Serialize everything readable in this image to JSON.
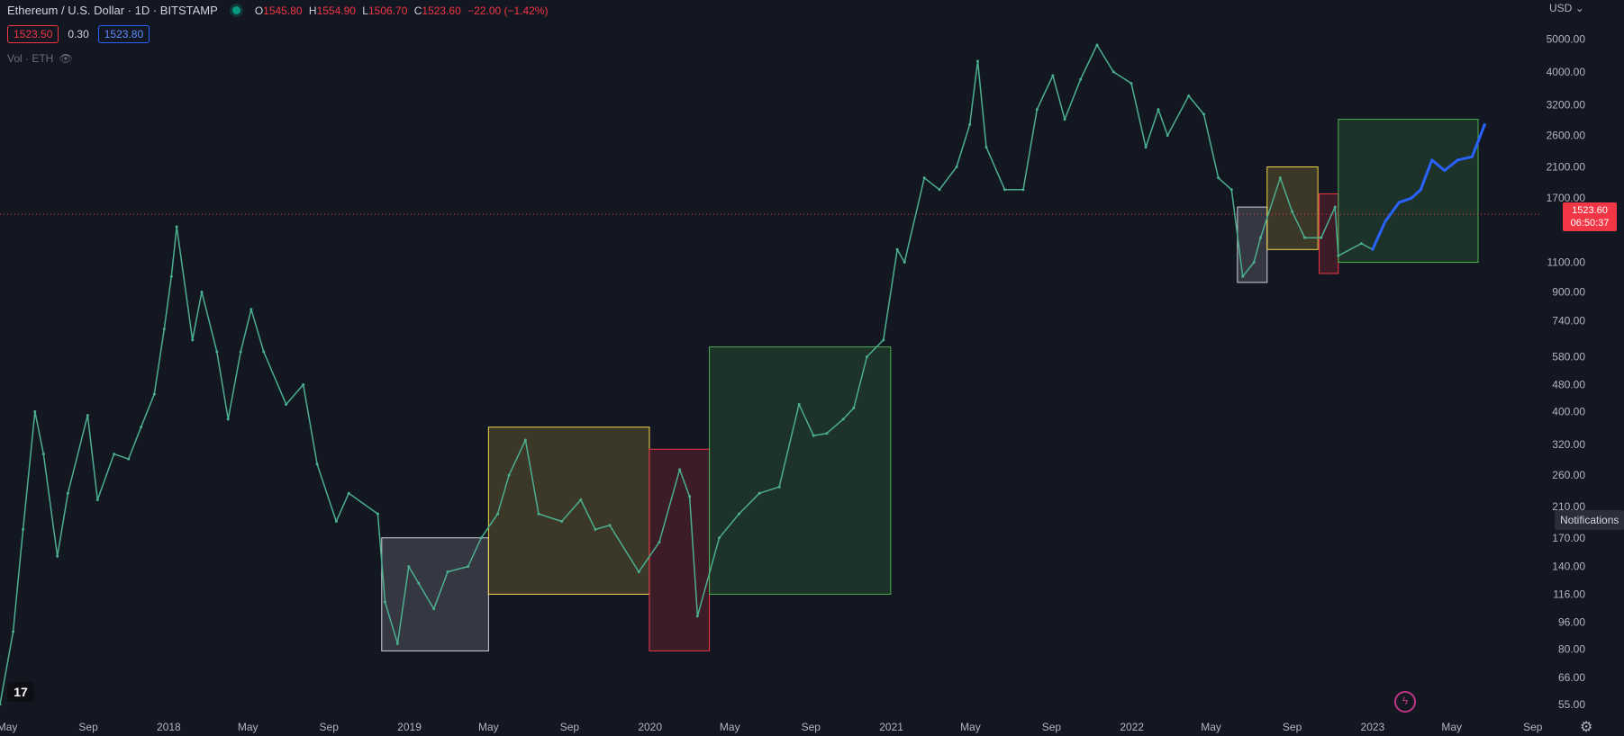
{
  "header": {
    "symbol": "Ethereum / U.S. Dollar · 1D · BITSTAMP",
    "ohlc": [
      {
        "label": "O",
        "value": "1545.80"
      },
      {
        "label": "H",
        "value": "1554.90"
      },
      {
        "label": "L",
        "value": "1506.70"
      },
      {
        "label": "C",
        "value": "1523.60"
      }
    ],
    "change": "−22.00 (−1.42%)",
    "bid": "1523.50",
    "spread": "0.30",
    "ask": "1523.80",
    "volume_label": "Vol · ETH"
  },
  "price_axis": {
    "currency": "USD",
    "current_price": "1523.60",
    "countdown": "06:50:37"
  },
  "notifications_label": "Notifications",
  "colors": {
    "background": "#131722",
    "up": "#089981",
    "down": "#f23645",
    "forecast": "#2962ff"
  },
  "chart_data": {
    "type": "line",
    "y_scale": "log",
    "ylim": [
      52,
      6200
    ],
    "y_ticks": [
      "5000.00",
      "4000.00",
      "3200.00",
      "2600.00",
      "2100.00",
      "1700.00",
      "1100.00",
      "900.00",
      "740.00",
      "580.00",
      "480.00",
      "400.00",
      "320.00",
      "260.00",
      "210.00",
      "170.00",
      "140.00",
      "116.00",
      "96.00",
      "80.00",
      "66.00",
      "55.00"
    ],
    "x_range": [
      "2017-04-20",
      "2023-09-15"
    ],
    "x_ticks": [
      {
        "label": "May",
        "date": "2017-05-01"
      },
      {
        "label": "Sep",
        "date": "2017-09-01"
      },
      {
        "label": "2018",
        "date": "2018-01-01"
      },
      {
        "label": "May",
        "date": "2018-05-01"
      },
      {
        "label": "Sep",
        "date": "2018-09-01"
      },
      {
        "label": "2019",
        "date": "2019-01-01"
      },
      {
        "label": "May",
        "date": "2019-05-01"
      },
      {
        "label": "Sep",
        "date": "2019-09-01"
      },
      {
        "label": "2020",
        "date": "2020-01-01"
      },
      {
        "label": "May",
        "date": "2020-05-01"
      },
      {
        "label": "Sep",
        "date": "2020-09-01"
      },
      {
        "label": "2021",
        "date": "2021-01-01"
      },
      {
        "label": "May",
        "date": "2021-05-01"
      },
      {
        "label": "Sep",
        "date": "2021-09-01"
      },
      {
        "label": "2022",
        "date": "2022-01-01"
      },
      {
        "label": "May",
        "date": "2022-05-01"
      },
      {
        "label": "Sep",
        "date": "2022-09-01"
      },
      {
        "label": "2023",
        "date": "2023-01-01"
      },
      {
        "label": "May",
        "date": "2023-05-01"
      },
      {
        "label": "Sep",
        "date": "2023-09-01"
      }
    ],
    "current_price_line": 1523.6,
    "series": [
      {
        "color": "#4caf8f",
        "points": [
          [
            "2017-04-20",
            55
          ],
          [
            "2017-05-10",
            90
          ],
          [
            "2017-05-25",
            180
          ],
          [
            "2017-06-12",
            400
          ],
          [
            "2017-06-25",
            300
          ],
          [
            "2017-07-16",
            150
          ],
          [
            "2017-08-01",
            230
          ],
          [
            "2017-08-31",
            390
          ],
          [
            "2017-09-15",
            220
          ],
          [
            "2017-10-10",
            300
          ],
          [
            "2017-11-01",
            290
          ],
          [
            "2017-11-20",
            360
          ],
          [
            "2017-12-10",
            450
          ],
          [
            "2017-12-25",
            700
          ],
          [
            "2018-01-05",
            1000
          ],
          [
            "2018-01-13",
            1400
          ],
          [
            "2018-02-06",
            650
          ],
          [
            "2018-02-20",
            900
          ],
          [
            "2018-03-15",
            600
          ],
          [
            "2018-04-01",
            380
          ],
          [
            "2018-04-20",
            600
          ],
          [
            "2018-05-06",
            800
          ],
          [
            "2018-05-25",
            600
          ],
          [
            "2018-06-28",
            420
          ],
          [
            "2018-07-24",
            480
          ],
          [
            "2018-08-14",
            280
          ],
          [
            "2018-09-12",
            190
          ],
          [
            "2018-10-01",
            230
          ],
          [
            "2018-11-14",
            200
          ],
          [
            "2018-11-25",
            110
          ],
          [
            "2018-12-14",
            83
          ],
          [
            "2018-12-31",
            140
          ],
          [
            "2019-01-15",
            125
          ],
          [
            "2019-02-07",
            105
          ],
          [
            "2019-02-28",
            135
          ],
          [
            "2019-03-31",
            140
          ],
          [
            "2019-04-20",
            170
          ],
          [
            "2019-05-15",
            200
          ],
          [
            "2019-06-01",
            260
          ],
          [
            "2019-06-26",
            330
          ],
          [
            "2019-07-16",
            200
          ],
          [
            "2019-08-20",
            190
          ],
          [
            "2019-09-18",
            220
          ],
          [
            "2019-10-10",
            180
          ],
          [
            "2019-11-01",
            185
          ],
          [
            "2019-12-15",
            135
          ],
          [
            "2020-01-15",
            165
          ],
          [
            "2020-02-15",
            270
          ],
          [
            "2020-03-01",
            225
          ],
          [
            "2020-03-13",
            100
          ],
          [
            "2020-04-15",
            170
          ],
          [
            "2020-05-15",
            200
          ],
          [
            "2020-06-15",
            230
          ],
          [
            "2020-07-15",
            240
          ],
          [
            "2020-08-14",
            420
          ],
          [
            "2020-09-05",
            340
          ],
          [
            "2020-09-25",
            345
          ],
          [
            "2020-10-20",
            380
          ],
          [
            "2020-11-05",
            410
          ],
          [
            "2020-11-25",
            580
          ],
          [
            "2020-12-20",
            650
          ],
          [
            "2021-01-10",
            1200
          ],
          [
            "2021-01-21",
            1100
          ],
          [
            "2021-02-20",
            1950
          ],
          [
            "2021-03-15",
            1800
          ],
          [
            "2021-04-10",
            2100
          ],
          [
            "2021-04-30",
            2800
          ],
          [
            "2021-05-12",
            4300
          ],
          [
            "2021-05-25",
            2400
          ],
          [
            "2021-06-22",
            1800
          ],
          [
            "2021-07-20",
            1800
          ],
          [
            "2021-08-10",
            3100
          ],
          [
            "2021-09-03",
            3900
          ],
          [
            "2021-09-21",
            2900
          ],
          [
            "2021-10-15",
            3800
          ],
          [
            "2021-11-09",
            4800
          ],
          [
            "2021-12-04",
            4000
          ],
          [
            "2021-12-31",
            3700
          ],
          [
            "2022-01-22",
            2400
          ],
          [
            "2022-02-10",
            3100
          ],
          [
            "2022-02-24",
            2600
          ],
          [
            "2022-03-28",
            3400
          ],
          [
            "2022-04-20",
            3000
          ],
          [
            "2022-05-12",
            1950
          ],
          [
            "2022-06-01",
            1800
          ],
          [
            "2022-06-18",
            1000
          ],
          [
            "2022-07-05",
            1100
          ],
          [
            "2022-07-15",
            1300
          ],
          [
            "2022-08-14",
            1950
          ],
          [
            "2022-09-01",
            1550
          ],
          [
            "2022-09-20",
            1300
          ],
          [
            "2022-10-15",
            1300
          ],
          [
            "2022-11-05",
            1600
          ],
          [
            "2022-11-10",
            1150
          ],
          [
            "2022-12-15",
            1250
          ],
          [
            "2023-01-01",
            1200
          ]
        ]
      },
      {
        "color": "#2962ff",
        "points": [
          [
            "2023-01-01",
            1200
          ],
          [
            "2023-01-20",
            1450
          ],
          [
            "2023-02-10",
            1650
          ],
          [
            "2023-03-01",
            1700
          ],
          [
            "2023-03-15",
            1800
          ],
          [
            "2023-04-01",
            2200
          ],
          [
            "2023-04-20",
            2050
          ],
          [
            "2023-05-10",
            2200
          ],
          [
            "2023-06-01",
            2250
          ],
          [
            "2023-06-20",
            2800
          ]
        ]
      }
    ],
    "boxes": [
      {
        "start": "2018-11-20",
        "end": "2019-05-01",
        "high": 170,
        "low": 79,
        "color": "#d1d4dc"
      },
      {
        "start": "2019-05-01",
        "end": "2019-12-31",
        "high": 360,
        "low": 116,
        "color": "#f5d547"
      },
      {
        "start": "2019-12-31",
        "end": "2020-03-31",
        "high": 310,
        "low": 79,
        "color": "#f23645"
      },
      {
        "start": "2020-03-31",
        "end": "2020-12-31",
        "high": 620,
        "low": 116,
        "color": "#4caf50"
      },
      {
        "start": "2022-06-10",
        "end": "2022-07-25",
        "high": 1600,
        "low": 960,
        "color": "#d1d4dc"
      },
      {
        "start": "2022-07-25",
        "end": "2022-10-10",
        "high": 2100,
        "low": 1200,
        "color": "#f5d547"
      },
      {
        "start": "2022-10-12",
        "end": "2022-11-10",
        "high": 1750,
        "low": 1020,
        "color": "#f23645"
      },
      {
        "start": "2022-11-10",
        "end": "2023-06-10",
        "high": 2900,
        "low": 1100,
        "color": "#4caf50"
      }
    ]
  }
}
